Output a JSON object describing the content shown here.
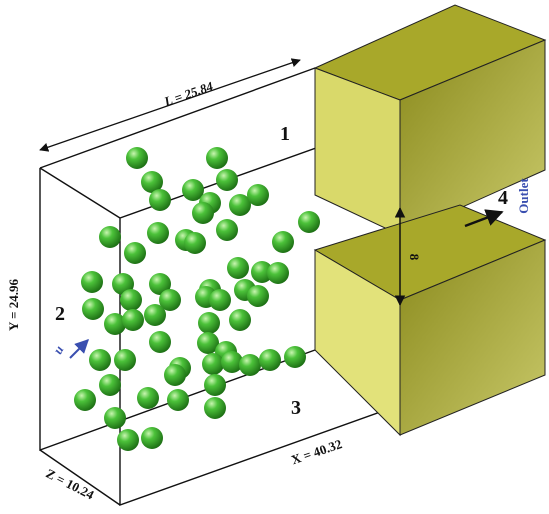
{
  "labels": {
    "length": "L = 25.84",
    "height": "Y = 24.96",
    "depth": "Z = 10.24",
    "width": "X = 40.32",
    "gap": "8",
    "region_1": "1",
    "region_2": "2",
    "region_3": "3",
    "region_4": "4",
    "outlet": "Outlet",
    "inlet_velocity": "u"
  }
}
